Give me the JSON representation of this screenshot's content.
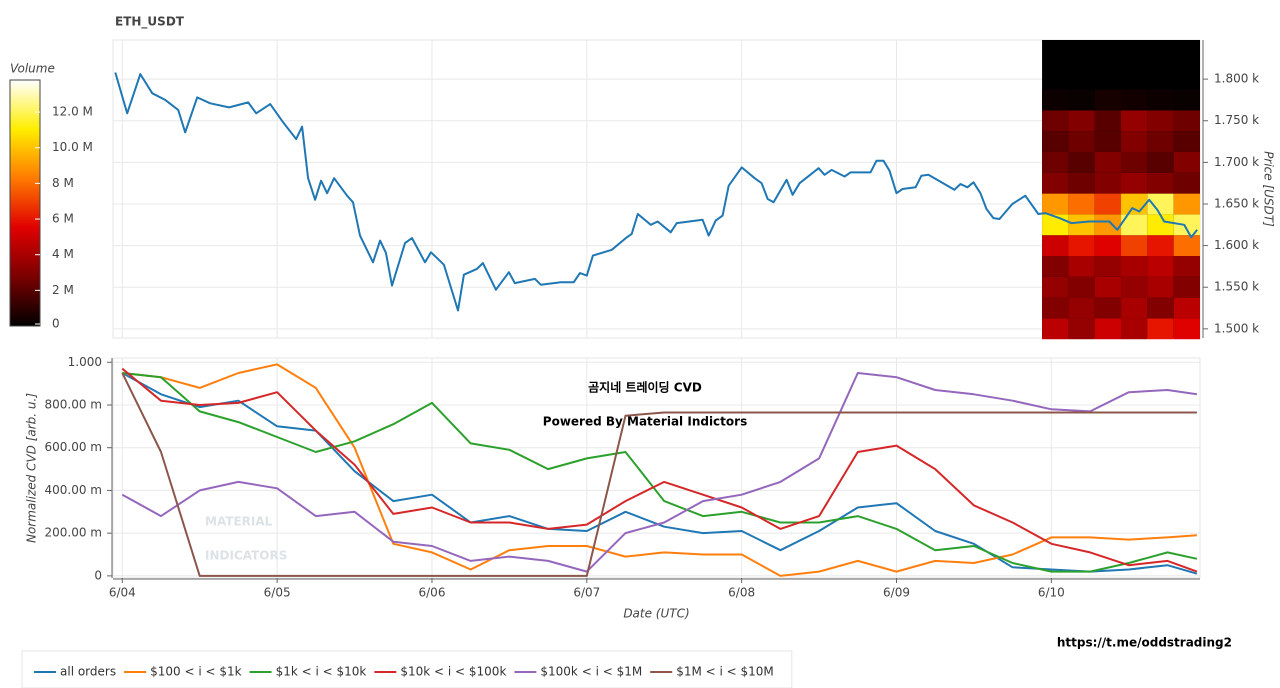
{
  "chart_data": [
    {
      "type": "line",
      "title": "ETH_USDT",
      "y_label": "Price [USDT]",
      "color": "#1f77b4",
      "x": [
        -0.045,
        0.032,
        0.116,
        0.194,
        0.277,
        0.361,
        0.406,
        0.484,
        0.568,
        0.69,
        0.813,
        0.865,
        0.955,
        1.039,
        1.123,
        1.161,
        1.2,
        1.245,
        1.284,
        1.323,
        1.368,
        1.452,
        1.49,
        1.535,
        1.619,
        1.665,
        1.703,
        1.742,
        1.826,
        1.871,
        1.955,
        1.994,
        2.077,
        2.168,
        2.206,
        2.29,
        2.329,
        2.413,
        2.497,
        2.535,
        2.665,
        2.703,
        2.832,
        2.916,
        2.955,
        3.0,
        3.039,
        3.161,
        3.252,
        3.29,
        3.329,
        3.413,
        3.458,
        3.542,
        3.581,
        3.748,
        3.787,
        3.832,
        3.877,
        3.916,
        4.0,
        4.084,
        4.129,
        4.168,
        4.206,
        4.29,
        4.329,
        4.374,
        4.497,
        4.535,
        4.581,
        4.665,
        4.703,
        4.832,
        4.871,
        4.916,
        4.955,
        5.0,
        5.039,
        5.123,
        5.161,
        5.206,
        5.29,
        5.374,
        5.413,
        5.458,
        5.497,
        5.542,
        5.581,
        5.626,
        5.665,
        5.748,
        5.832,
        5.916,
        5.961,
        6.052,
        6.129,
        6.245,
        6.374,
        6.426,
        6.523,
        6.568,
        6.632,
        6.684,
        6.729,
        6.858,
        6.903,
        6.942
      ],
      "values": [
        1808,
        1759,
        1806,
        1783,
        1775,
        1763,
        1736,
        1778,
        1771,
        1766,
        1772,
        1759,
        1770,
        1748,
        1728,
        1743,
        1681,
        1655,
        1678,
        1663,
        1681,
        1660,
        1652,
        1612,
        1580,
        1606,
        1591,
        1552,
        1603,
        1609,
        1580,
        1592,
        1577,
        1522,
        1565,
        1572,
        1579,
        1547,
        1568,
        1555,
        1560,
        1553,
        1556,
        1556,
        1567,
        1564,
        1588,
        1595,
        1609,
        1614,
        1638,
        1625,
        1629,
        1616,
        1627,
        1631,
        1612,
        1630,
        1636,
        1672,
        1694,
        1681,
        1675,
        1656,
        1652,
        1679,
        1661,
        1675,
        1693,
        1685,
        1691,
        1683,
        1688,
        1688,
        1702,
        1702,
        1690,
        1663,
        1668,
        1670,
        1684,
        1685,
        1676,
        1667,
        1674,
        1670,
        1676,
        1663,
        1644,
        1633,
        1632,
        1650,
        1660,
        1638,
        1639,
        1633,
        1627,
        1629,
        1629,
        1619,
        1645,
        1641,
        1655,
        1643,
        1629,
        1625,
        1610,
        1619
      ],
      "xlim": [
        -0.06,
        6.96
      ],
      "xticks": [
        0,
        1,
        2,
        3,
        4,
        5,
        6
      ],
      "ylim": [
        1489,
        1847
      ],
      "yticks": [
        {
          "value": 1500,
          "label": "1.500 k"
        },
        {
          "value": 1550,
          "label": "1.550 k"
        },
        {
          "value": 1600,
          "label": "1.600 k"
        },
        {
          "value": 1650,
          "label": "1.650 k"
        },
        {
          "value": 1700,
          "label": "1.700 k"
        },
        {
          "value": 1750,
          "label": "1.750 k"
        },
        {
          "value": 1800,
          "label": "1.800 k"
        }
      ],
      "grid": true,
      "heatmap": {
        "x_edges": [
          5.94,
          6.11,
          6.28,
          6.45,
          6.62,
          6.79,
          6.96
        ],
        "y_edges": [
          1487.5,
          1512.5,
          1537.5,
          1562.5,
          1587.5,
          1612.5,
          1637.5,
          1662.5,
          1687.5,
          1712.5,
          1737.5,
          1762.5,
          1787.5
        ],
        "values": [
          [
            4500000,
            3500000,
            5000000,
            4000000,
            6000000,
            5500000
          ],
          [
            3000000,
            3500000,
            3000000,
            4000000,
            3000000,
            4500000
          ],
          [
            3500000,
            3000000,
            4000000,
            3500000,
            4000000,
            3000000
          ],
          [
            3000000,
            4000000,
            3500000,
            4000000,
            4500000,
            3500000
          ],
          [
            5000000,
            6000000,
            5500000,
            7000000,
            6000000,
            8000000
          ],
          [
            11000000,
            10000000,
            9000000,
            12000000,
            11000000,
            12000000
          ],
          [
            9000000,
            8000000,
            7000000,
            10000000,
            12000000,
            9000000
          ],
          [
            3000000,
            2500000,
            3000000,
            3500000,
            3000000,
            2500000
          ],
          [
            2500000,
            2000000,
            3000000,
            2500000,
            2000000,
            3000000
          ],
          [
            2000000,
            2500000,
            2000000,
            3000000,
            2500000,
            2000000
          ],
          [
            2500000,
            3000000,
            2000000,
            3500000,
            3000000,
            2500000
          ],
          [
            300000,
            200000,
            500000,
            400000,
            300000,
            200000
          ]
        ]
      },
      "colorbar": {
        "title": "Volume",
        "clim": [
          0,
          13800000
        ],
        "ticks": [
          0,
          {
            "value": 2000000,
            "label": "2 M"
          },
          {
            "value": 4000000,
            "label": "4 M"
          },
          {
            "value": 6000000,
            "label": "6 M"
          },
          {
            "value": 8000000,
            "label": "8 M"
          },
          {
            "value": 10000000,
            "label": "10.0 M"
          },
          {
            "value": 12000000,
            "label": "12.0 M"
          }
        ],
        "colormap": [
          "#000000",
          "#7a0000",
          "#e00000",
          "#ff7a00",
          "#ffee00",
          "#ffffff"
        ]
      }
    },
    {
      "type": "line",
      "y_label": "Normalized CVD [arb. u.]",
      "x_label": "Date (UTC)",
      "x": [
        0,
        0.25,
        0.5,
        0.75,
        1,
        1.25,
        1.5,
        1.75,
        2,
        2.25,
        2.5,
        2.75,
        3,
        3.25,
        3.5,
        3.75,
        4,
        4.25,
        4.5,
        4.75,
        5,
        5.25,
        5.5,
        5.75,
        6,
        6.25,
        6.5,
        6.75,
        6.94
      ],
      "series": [
        {
          "name": "all orders",
          "color": "#1f77b4",
          "values": [
            0.95,
            0.85,
            0.79,
            0.82,
            0.7,
            0.68,
            0.49,
            0.35,
            0.38,
            0.25,
            0.28,
            0.22,
            0.21,
            0.3,
            0.23,
            0.2,
            0.21,
            0.12,
            0.21,
            0.32,
            0.34,
            0.21,
            0.15,
            0.04,
            0.03,
            0.02,
            0.03,
            0.05,
            0.01
          ]
        },
        {
          "name": "$100 < i < $1k",
          "color": "#ff7f0e",
          "values": [
            0.95,
            0.93,
            0.88,
            0.95,
            0.99,
            0.88,
            0.6,
            0.15,
            0.11,
            0.03,
            0.12,
            0.14,
            0.14,
            0.09,
            0.11,
            0.1,
            0.1,
            0.0,
            0.02,
            0.07,
            0.02,
            0.07,
            0.06,
            0.1,
            0.18,
            0.18,
            0.17,
            0.18,
            0.19
          ]
        },
        {
          "name": "$1k < i < $10k",
          "color": "#2ca02c",
          "values": [
            0.95,
            0.93,
            0.77,
            0.72,
            0.65,
            0.58,
            0.63,
            0.71,
            0.81,
            0.62,
            0.59,
            0.5,
            0.55,
            0.58,
            0.35,
            0.28,
            0.3,
            0.25,
            0.25,
            0.28,
            0.22,
            0.12,
            0.14,
            0.06,
            0.02,
            0.02,
            0.06,
            0.11,
            0.08
          ]
        },
        {
          "name": "$10k < i < $100k",
          "color": "#d62728",
          "values": [
            0.97,
            0.82,
            0.8,
            0.81,
            0.86,
            0.68,
            0.52,
            0.29,
            0.32,
            0.25,
            0.25,
            0.22,
            0.24,
            0.35,
            0.44,
            0.38,
            0.32,
            0.22,
            0.28,
            0.58,
            0.61,
            0.5,
            0.33,
            0.25,
            0.15,
            0.11,
            0.05,
            0.07,
            0.02
          ]
        },
        {
          "name": "$100k < i < $1M",
          "color": "#9467bd",
          "values": [
            0.38,
            0.28,
            0.4,
            0.44,
            0.41,
            0.28,
            0.3,
            0.16,
            0.14,
            0.07,
            0.09,
            0.07,
            0.02,
            0.2,
            0.25,
            0.35,
            0.38,
            0.44,
            0.55,
            0.95,
            0.93,
            0.87,
            0.85,
            0.82,
            0.78,
            0.77,
            0.86,
            0.87,
            0.85
          ]
        },
        {
          "name": "$1M < i < $10M",
          "color": "#8c564b",
          "values": [
            0.95,
            0.58,
            0,
            0,
            0,
            0,
            0,
            0,
            0,
            0,
            0,
            0,
            0,
            0.75,
            0.765,
            0.765,
            0.765,
            0.765,
            0.765,
            0.765,
            0.765,
            0.765,
            0.765,
            0.765,
            0.765,
            0.765,
            0.765,
            0.765,
            0.765
          ]
        }
      ],
      "xlim": [
        -0.06,
        6.96
      ],
      "xticks": [
        {
          "value": 0,
          "label": "6/04"
        },
        {
          "value": 1,
          "label": "6/05"
        },
        {
          "value": 2,
          "label": "6/06"
        },
        {
          "value": 3,
          "label": "6/07"
        },
        {
          "value": 4,
          "label": "6/08"
        },
        {
          "value": 5,
          "label": "6/09"
        },
        {
          "value": 6,
          "label": "6/10"
        }
      ],
      "ylim": [
        -0.01,
        1.02
      ],
      "yticks": [
        0,
        {
          "value": 0.2,
          "label": "200.00 m"
        },
        {
          "value": 0.4,
          "label": "400.00 m"
        },
        {
          "value": 0.6,
          "label": "600.00 m"
        },
        {
          "value": 0.8,
          "label": "800.00 m"
        },
        {
          "value": 1,
          "label": "1.000"
        }
      ],
      "grid": true,
      "legend": "bottom-left",
      "annotations": [
        "곰지네 트레이딩 CVD",
        "Powered By Material Indictors",
        "https://t.me/oddstrading2",
        "MATERIAL",
        "INDICATORS"
      ]
    }
  ]
}
